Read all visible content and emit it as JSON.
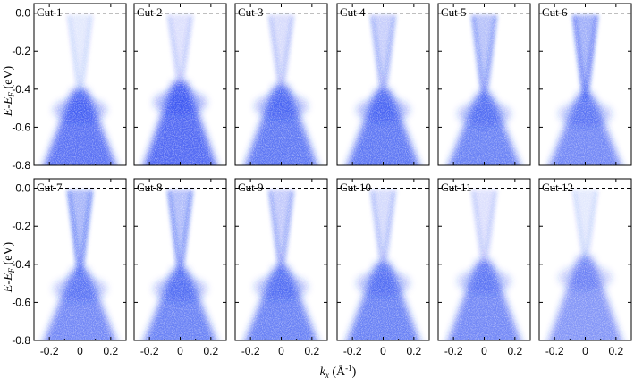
{
  "figure": {
    "y_axis_label_main": "E-E",
    "y_axis_label_sub": "F",
    "y_axis_label_unit": " (eV)",
    "x_axis_label_main": "k",
    "x_axis_label_sub": "x",
    "x_axis_label_unit": " (Å",
    "x_axis_label_sup": "-1",
    "x_axis_label_close": ")",
    "colors": {
      "intensity": "#1f3ff0",
      "fermi_line": "#000000",
      "frame": "#000000"
    }
  },
  "chart_data": {
    "type": "heatmap",
    "description_kind": "ARPES intensity maps, 2 rows x 6 columns",
    "x_ticks": [
      "-0.2",
      "0",
      "0.2"
    ],
    "y_ticks": [
      "0.0",
      "-0.2",
      "-0.4",
      "-0.6",
      "-0.8"
    ],
    "xlim": [
      -0.3,
      0.3
    ],
    "ylim": [
      -0.8,
      0.05
    ],
    "fermi_level": 0.0,
    "panels": [
      {
        "label": "Cut 1",
        "dirac_energy": -0.46,
        "intensity": 0.95,
        "upper_weight": 0.25
      },
      {
        "label": "Cut 2",
        "dirac_energy": -0.42,
        "intensity": 1.0,
        "upper_weight": 0.35
      },
      {
        "label": "Cut 3",
        "dirac_energy": -0.44,
        "intensity": 0.9,
        "upper_weight": 0.4
      },
      {
        "label": "Cut 4",
        "dirac_energy": -0.46,
        "intensity": 0.9,
        "upper_weight": 0.55
      },
      {
        "label": "Cut 5",
        "dirac_energy": -0.48,
        "intensity": 0.85,
        "upper_weight": 0.7
      },
      {
        "label": "Cut 6",
        "dirac_energy": -0.48,
        "intensity": 0.8,
        "upper_weight": 0.9
      },
      {
        "label": "Cut 7",
        "dirac_energy": -0.48,
        "intensity": 0.8,
        "upper_weight": 0.85
      },
      {
        "label": "Cut 8",
        "dirac_energy": -0.48,
        "intensity": 0.85,
        "upper_weight": 0.75
      },
      {
        "label": "Cut 9",
        "dirac_energy": -0.47,
        "intensity": 0.85,
        "upper_weight": 0.6
      },
      {
        "label": "Cut 10",
        "dirac_energy": -0.45,
        "intensity": 0.85,
        "upper_weight": 0.45
      },
      {
        "label": "Cut 11",
        "dirac_energy": -0.44,
        "intensity": 0.8,
        "upper_weight": 0.35
      },
      {
        "label": "Cut 12",
        "dirac_energy": -0.42,
        "intensity": 0.7,
        "upper_weight": 0.25
      }
    ]
  }
}
